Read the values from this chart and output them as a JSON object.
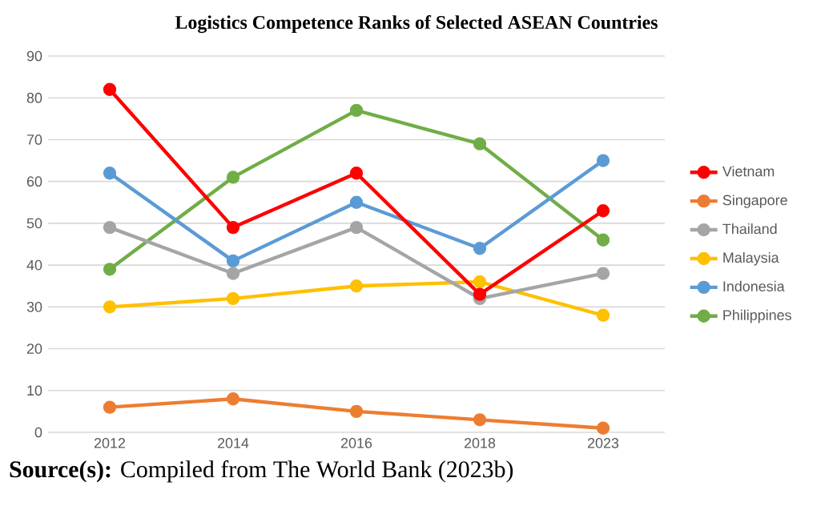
{
  "chart_data": {
    "type": "line",
    "title": "Logistics Competence Ranks of Selected ASEAN Countries",
    "categories": [
      "2012",
      "2014",
      "2016",
      "2018",
      "2023"
    ],
    "series": [
      {
        "name": "Vietnam",
        "color": "#ff0000",
        "values": [
          82,
          49,
          62,
          33,
          53
        ]
      },
      {
        "name": "Singapore",
        "color": "#ed7d31",
        "values": [
          6,
          8,
          5,
          3,
          1
        ]
      },
      {
        "name": "Thailand",
        "color": "#a5a5a5",
        "values": [
          49,
          38,
          49,
          32,
          38
        ]
      },
      {
        "name": "Malaysia",
        "color": "#ffc000",
        "values": [
          30,
          32,
          35,
          36,
          28
        ]
      },
      {
        "name": "Indonesia",
        "color": "#5b9bd5",
        "values": [
          62,
          41,
          55,
          44,
          65
        ]
      },
      {
        "name": "Philippines",
        "color": "#70ad47",
        "values": [
          39,
          61,
          77,
          69,
          46
        ]
      }
    ],
    "ylim": [
      0,
      90
    ],
    "yticks": [
      0,
      10,
      20,
      30,
      40,
      50,
      60,
      70,
      80,
      90
    ],
    "grid": "y",
    "legend": "right",
    "marker": "circle",
    "annotations": [
      "**Source(s):** Compiled from The World Bank (2023b)"
    ]
  }
}
